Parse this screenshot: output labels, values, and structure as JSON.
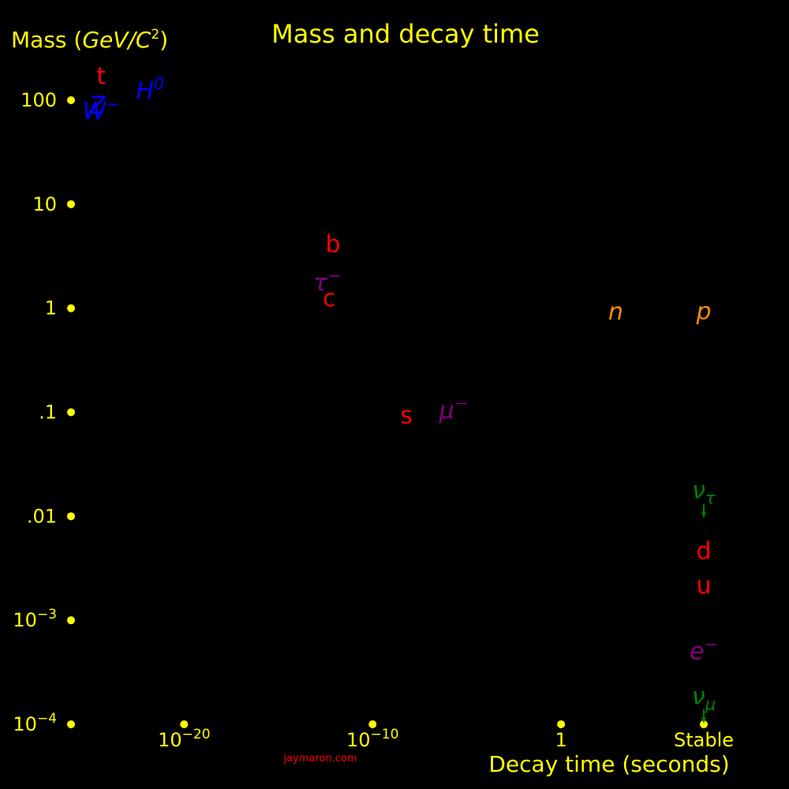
{
  "chart_data": {
    "type": "scatter",
    "title": "Mass and decay time",
    "ylabel": {
      "text": "Mass (",
      "var": "GeV/C",
      "sup": "2",
      "close": ")"
    },
    "xlabel": "Decay time (seconds)",
    "y_scale": "log",
    "ylim": [
      0.0001,
      100
    ],
    "x_scale": "log",
    "xlim_log10": [
      -26,
      10
    ],
    "y_ticks": [
      {
        "value": 100,
        "label": "100"
      },
      {
        "value": 10,
        "label": "10"
      },
      {
        "value": 1,
        "label": "1"
      },
      {
        "value": 0.1,
        "label": ".1"
      },
      {
        "value": 0.01,
        "label": ".01"
      },
      {
        "value": 0.001,
        "base": "10",
        "sup": "−3"
      },
      {
        "value": 0.0001,
        "base": "10",
        "sup": "−4"
      }
    ],
    "x_ticks": [
      {
        "log10": -20,
        "base": "10",
        "sup": "−20"
      },
      {
        "log10": -10,
        "base": "10",
        "sup": "−10"
      },
      {
        "log10": 0,
        "label": "1"
      },
      {
        "stable": true,
        "label": "Stable"
      }
    ],
    "points": [
      {
        "label": "t",
        "italic": false,
        "mass": 173,
        "log10_time": -24.4,
        "color": "#ff0000"
      },
      {
        "label": "Z",
        "italic": true,
        "mass": 91,
        "log10_time": -24.6,
        "color": "#0000ff"
      },
      {
        "label": "W",
        "sup": "−",
        "italic": true,
        "mass": 80,
        "log10_time": -24.4,
        "color": "#0000ff"
      },
      {
        "label": "H",
        "sup": "0",
        "italic": true,
        "mass": 125,
        "log10_time": -21.8,
        "color": "#0000ff"
      },
      {
        "label": "b",
        "italic": false,
        "mass": 4.2,
        "log10_time": -12.1,
        "color": "#ff0000"
      },
      {
        "label": "τ",
        "sup": "−",
        "italic": true,
        "mass": 1.78,
        "log10_time": -12.4,
        "color": "#800080"
      },
      {
        "label": "c",
        "italic": false,
        "mass": 1.27,
        "log10_time": -12.3,
        "color": "#ff0000"
      },
      {
        "label": "n",
        "italic": true,
        "mass": 0.94,
        "log10_time": 2.9,
        "color": "#ff8c00"
      },
      {
        "label": "p",
        "italic": true,
        "mass": 0.94,
        "stable": true,
        "color": "#ff8c00"
      },
      {
        "label": "s",
        "italic": false,
        "mass": 0.095,
        "log10_time": -8.2,
        "color": "#ff0000"
      },
      {
        "label": "μ",
        "sup": "−",
        "italic": true,
        "mass": 0.106,
        "log10_time": -5.7,
        "color": "#800080"
      },
      {
        "label": "ν",
        "sub": "τ",
        "italic": true,
        "mass": 0.018,
        "stable": true,
        "color": "#008000",
        "upper_limit": true
      },
      {
        "label": "d",
        "italic": false,
        "mass": 0.0047,
        "stable": true,
        "color": "#ff0000"
      },
      {
        "label": "u",
        "italic": false,
        "mass": 0.0022,
        "stable": true,
        "color": "#ff0000"
      },
      {
        "label": "e",
        "sup": "−",
        "italic": true,
        "mass": 0.000511,
        "stable": true,
        "color": "#800080"
      },
      {
        "label": "ν",
        "sub": "μ",
        "italic": true,
        "mass": 0.00019,
        "stable": true,
        "color": "#008000",
        "upper_limit": true
      }
    ],
    "credit": "jaymaron.com",
    "colors": {
      "background": "#000000",
      "axis_text": "#ffff00",
      "credit": "#ff0000"
    },
    "grid": false,
    "legend": "none"
  }
}
